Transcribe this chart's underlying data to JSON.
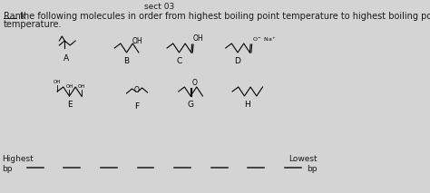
{
  "bg_color": "#d4d4d4",
  "text_color": "#1a1a1a",
  "header_text": "sect 03",
  "highest_bp": "Highest\nbp",
  "lowest_bp": "Lowest\nbp",
  "num_blanks": 8,
  "font_size_main": 7.0,
  "font_size_labels": 6.5,
  "font_size_mol": 5.5
}
